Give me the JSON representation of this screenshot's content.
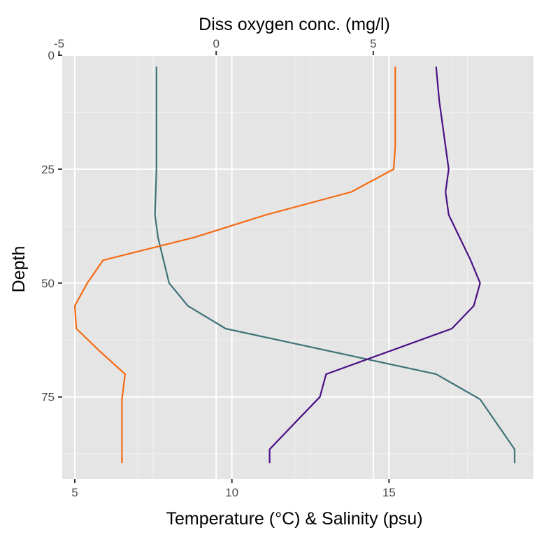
{
  "chart_data": {
    "type": "line",
    "ylabel": "Depth",
    "xlabel_bottom": "Temperature (°C) & Salinity (psu)",
    "xlabel_top": "Diss oxygen conc. (mg/l)",
    "y_reversed": true,
    "ylim": [
      0,
      93
    ],
    "xlim_bottom": [
      4.6,
      19.6
    ],
    "xlim_top": [
      -4.9,
      10.1
    ],
    "y_ticks": [
      0,
      25,
      50,
      75
    ],
    "x_ticks_bottom": [
      5,
      10,
      15
    ],
    "x_ticks_top": [
      -5,
      0,
      5
    ],
    "grid": true,
    "panel_background": "#e5e5e5",
    "series": [
      {
        "axis": "bottom",
        "color": "#3f7378",
        "points": [
          [
            7.6,
            2.5
          ],
          [
            7.6,
            25
          ],
          [
            7.55,
            35
          ],
          [
            7.65,
            40
          ],
          [
            8.0,
            50
          ],
          [
            8.6,
            55
          ],
          [
            9.8,
            60
          ],
          [
            16.5,
            70
          ],
          [
            17.9,
            75.5
          ],
          [
            19.0,
            86.5
          ],
          [
            19.0,
            89.5
          ]
        ]
      },
      {
        "axis": "bottom",
        "color": "#4b0f85",
        "points": [
          [
            16.5,
            2.5
          ],
          [
            16.6,
            10
          ],
          [
            16.8,
            20
          ],
          [
            16.9,
            25
          ],
          [
            16.8,
            30
          ],
          [
            16.9,
            35
          ],
          [
            17.6,
            45
          ],
          [
            17.9,
            50
          ],
          [
            17.7,
            55
          ],
          [
            17.0,
            60
          ],
          [
            13.0,
            70
          ],
          [
            12.8,
            75
          ],
          [
            12.1,
            80
          ],
          [
            11.2,
            86.5
          ],
          [
            11.2,
            89.5
          ]
        ]
      },
      {
        "axis": "top",
        "color": "#f56a14",
        "points": [
          [
            5.7,
            2.5
          ],
          [
            5.7,
            15
          ],
          [
            5.7,
            20
          ],
          [
            5.65,
            25
          ],
          [
            4.3,
            30
          ],
          [
            1.6,
            35
          ],
          [
            -0.7,
            40
          ],
          [
            -3.6,
            45
          ],
          [
            -4.1,
            50
          ],
          [
            -4.5,
            55
          ],
          [
            -4.45,
            60
          ],
          [
            -3.7,
            65
          ],
          [
            -2.9,
            70
          ],
          [
            -3.0,
            75.5
          ],
          [
            -3.0,
            80
          ],
          [
            -3.0,
            89.5
          ]
        ]
      }
    ]
  }
}
